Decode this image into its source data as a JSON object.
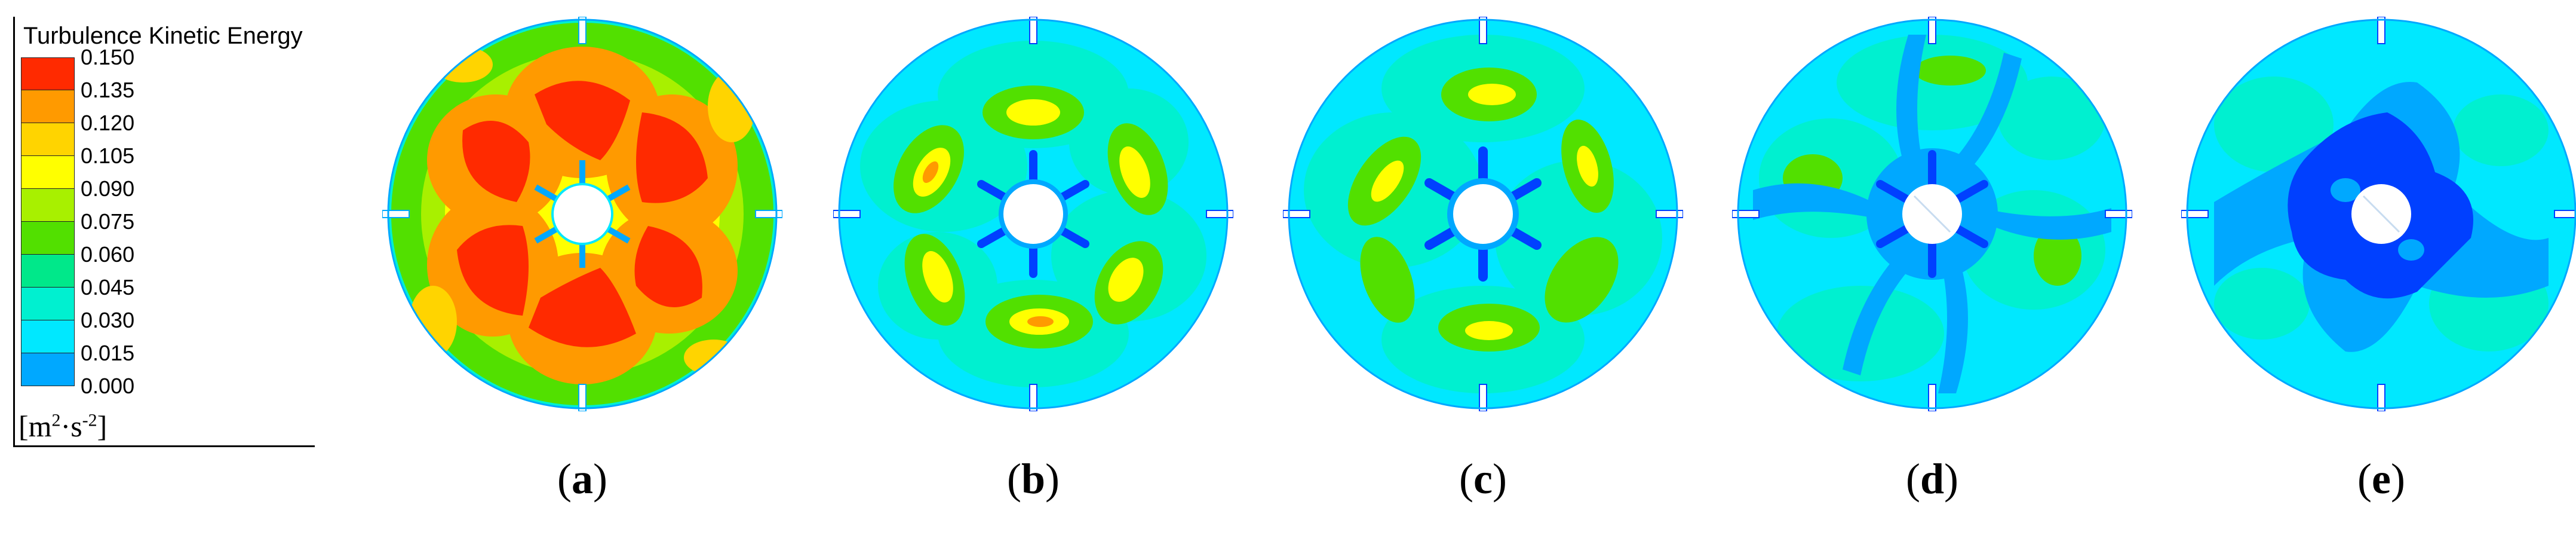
{
  "legend": {
    "title": "Turbulence Kinetic Energy",
    "ticks": [
      "0.150",
      "0.135",
      "0.120",
      "0.105",
      "0.090",
      "0.075",
      "0.060",
      "0.045",
      "0.030",
      "0.015",
      "0.000"
    ],
    "colors": [
      "#ff2a00",
      "#ff9a00",
      "#ffd400",
      "#ffff00",
      "#a8f000",
      "#52e000",
      "#00e88a",
      "#00f0d0",
      "#00e8ff",
      "#00a8ff",
      "#0040ff"
    ]
  },
  "panels": [
    {
      "label": "a",
      "dominant": "high turbulence (red) in six lobes around hub"
    },
    {
      "label": "b"
    },
    {
      "label": "c"
    },
    {
      "label": "d"
    },
    {
      "label": "e"
    }
  ],
  "colors": {
    "red": "#ff2a00",
    "orange": "#ff9a00",
    "yellow": "#ffff00",
    "lime": "#a8f000",
    "green": "#52e000",
    "teal": "#00e88a",
    "cyan": "#00f0d0",
    "lightblue": "#00e8ff",
    "blue": "#00a8ff",
    "darkblue": "#0040ff"
  }
}
